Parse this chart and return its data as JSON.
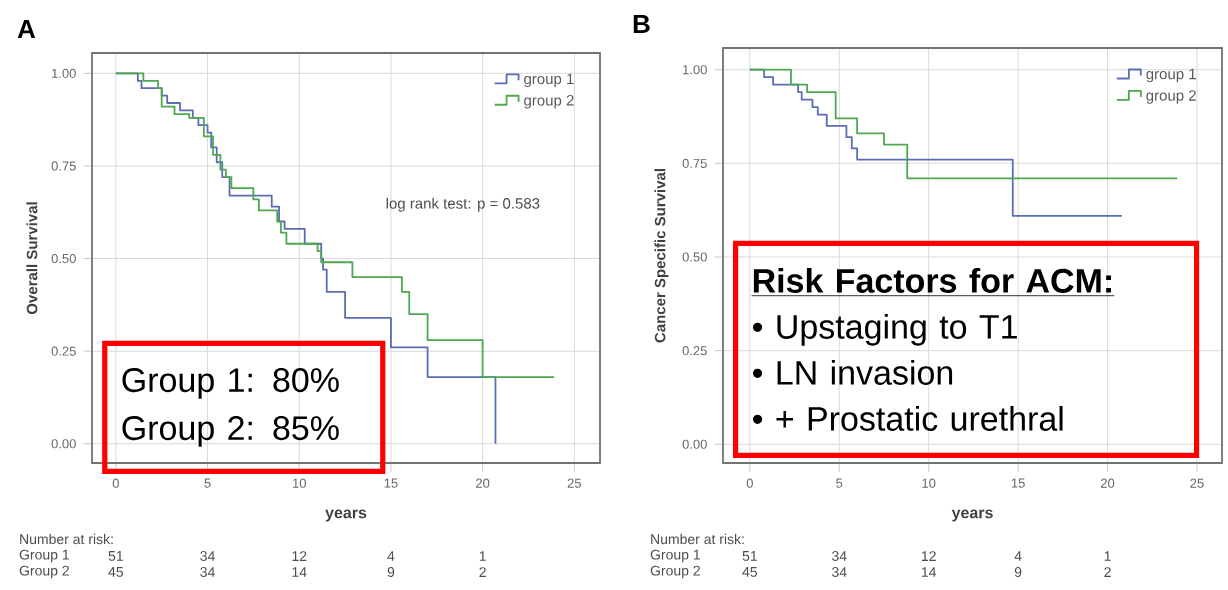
{
  "chart_data": [
    {
      "type": "step",
      "title": "A",
      "xlabel": "years",
      "ylabel": "Overall Survival",
      "xlim": [
        -1.3,
        26.4
      ],
      "ylim": [
        -0.052,
        1.055
      ],
      "xticks": [
        0,
        5,
        10,
        15,
        20,
        25
      ],
      "yticks": [
        {
          "value": 0,
          "label": "0.00"
        },
        {
          "value": 0.25,
          "label": "0.25"
        },
        {
          "value": 0.5,
          "label": "0.50"
        },
        {
          "value": 0.75,
          "label": "0.75"
        },
        {
          "value": 1,
          "label": "1.00"
        }
      ],
      "grid": true,
      "legend": "top right",
      "series": [
        {
          "name": "group 1",
          "color": "#5b6db3",
          "x": [
            0,
            1.2,
            1.4,
            2.5,
            2.8,
            3.5,
            4.2,
            4.5,
            5.0,
            5.2,
            5.5,
            5.8,
            6.2,
            8.5,
            8.9,
            9.2,
            10.3,
            11.2,
            11.3,
            11.5,
            12.5,
            15.0,
            17.0,
            20.7
          ],
          "values": [
            1,
            0.98,
            0.96,
            0.94,
            0.92,
            0.9,
            0.88,
            0.86,
            0.84,
            0.8,
            0.76,
            0.72,
            0.67,
            0.64,
            0.6,
            0.58,
            0.54,
            0.5,
            0.47,
            0.41,
            0.34,
            0.26,
            0.18,
            0
          ]
        },
        {
          "name": "group 2",
          "color": "#4ea84e",
          "x": [
            0,
            1.5,
            2.3,
            2.5,
            3.2,
            4.0,
            4.8,
            5.3,
            5.7,
            6.0,
            6.3,
            7.5,
            7.8,
            8.8,
            9.0,
            9.3,
            11.0,
            11.2,
            12.9,
            15.6,
            16.0,
            17.0,
            20.0,
            23.9
          ],
          "values": [
            1,
            0.98,
            0.96,
            0.91,
            0.89,
            0.88,
            0.83,
            0.78,
            0.74,
            0.72,
            0.69,
            0.66,
            0.63,
            0.6,
            0.57,
            0.54,
            0.52,
            0.49,
            0.45,
            0.41,
            0.35,
            0.28,
            0.18,
            0.18
          ]
        }
      ],
      "annotations": [
        "log rank test: p = 0.583",
        "Group 1: 80%",
        "Group 2: 85%",
        "Number at risk:",
        "Group 1",
        "51",
        "34",
        "12",
        "4",
        "1",
        "Group 2",
        "45",
        "34",
        "14",
        "9",
        "2"
      ]
    },
    {
      "type": "step",
      "title": "B",
      "xlabel": "years",
      "ylabel": "Cancer Specific Survival",
      "xlim": [
        -1.5,
        26.4
      ],
      "ylim": [
        -0.05,
        1.058
      ],
      "xticks": [
        0,
        5,
        10,
        15,
        20,
        25
      ],
      "yticks": [
        {
          "value": 0,
          "label": "0.00"
        },
        {
          "value": 0.25,
          "label": "0.25"
        },
        {
          "value": 0.5,
          "label": "0.50"
        },
        {
          "value": 0.75,
          "label": "0.75"
        },
        {
          "value": 1,
          "label": "1.00"
        }
      ],
      "grid": true,
      "legend": "top right",
      "series": [
        {
          "name": "group 1",
          "color": "#5b6db3",
          "x": [
            0,
            0.8,
            1.3,
            2.7,
            2.9,
            3.5,
            3.8,
            4.3,
            5.4,
            5.7,
            6.0,
            14.7,
            20.8
          ],
          "values": [
            1,
            0.98,
            0.96,
            0.94,
            0.92,
            0.9,
            0.88,
            0.85,
            0.82,
            0.79,
            0.76,
            0.61,
            0.61
          ]
        },
        {
          "name": "group 2",
          "color": "#4ea84e",
          "x": [
            0,
            2.3,
            3.2,
            4.8,
            6.0,
            7.5,
            8.8,
            23.9
          ],
          "values": [
            1,
            0.96,
            0.94,
            0.87,
            0.83,
            0.8,
            0.71,
            0.71
          ]
        }
      ],
      "annotations": [
        "Risk Factors for ACM:",
        "• Upstaging to T1",
        "• LN invasion",
        "• + Prostatic urethral",
        "Number at risk:",
        "Group 1",
        "51",
        "34",
        "12",
        "4",
        "1",
        "Group 2",
        "45",
        "34",
        "14",
        "9",
        "2"
      ]
    }
  ]
}
